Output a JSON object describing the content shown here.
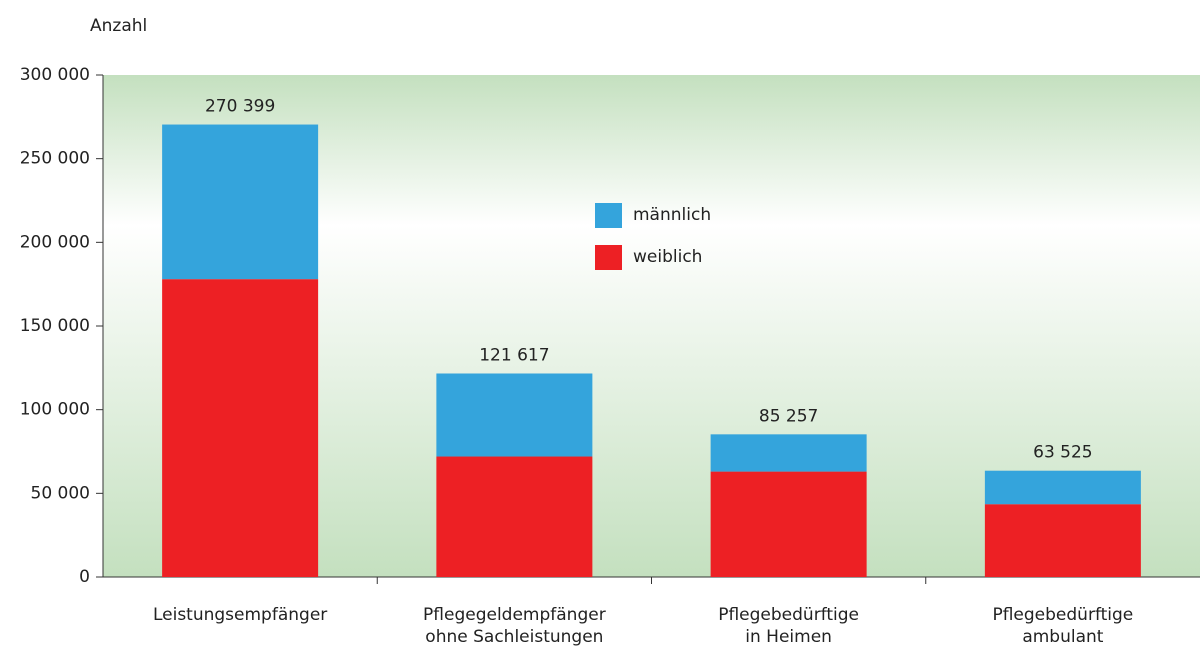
{
  "chart_data": {
    "type": "stacked-bar",
    "y_axis_label": "Anzahl",
    "categories": [
      "Leistungsempfänger",
      "Pflegegeldempfänger\nohne Sachleistungen",
      "Pflegebedürftige\nin Heimen",
      "Pflegebedürftige\nambulant"
    ],
    "series": [
      {
        "name": "weiblich",
        "color": "#ed2024",
        "values": [
          178000,
          72000,
          63000,
          43500
        ]
      },
      {
        "name": "männlich",
        "color": "#34a4dc",
        "values": [
          92399,
          49617,
          22257,
          20025
        ]
      }
    ],
    "totals": [
      270399,
      121617,
      85257,
      63525
    ],
    "total_labels": [
      "270 399",
      "121 617",
      "85 257",
      "63 525"
    ],
    "ylim": [
      0,
      300000
    ],
    "yticks": [
      0,
      {
        "value": 50000,
        "label": "50 000"
      },
      {
        "value": 100000,
        "label": "100 000"
      },
      {
        "value": 150000,
        "label": "150 000"
      },
      {
        "value": 200000,
        "label": "200 000"
      },
      {
        "value": 250000,
        "label": "250 000"
      },
      {
        "value": 300000,
        "label": "300 000"
      }
    ]
  }
}
